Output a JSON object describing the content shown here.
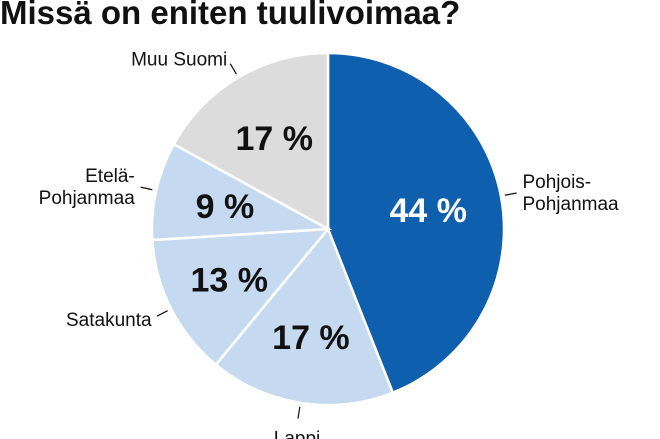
{
  "title": "Missä on eniten tuulivoimaa?",
  "chart_data": {
    "type": "pie",
    "title": "Missä on eniten tuulivoimaa?",
    "slices": [
      {
        "label_lines": [
          "Pohjois-",
          "Pohjanmaa"
        ],
        "value": 44,
        "value_label": "44 %",
        "color": "#0e5fad",
        "value_text_color": "#ffffff"
      },
      {
        "label_lines": [
          "Lappi"
        ],
        "value": 17,
        "value_label": "17 %",
        "color": "#c5daf1",
        "value_text_color": "#111111"
      },
      {
        "label_lines": [
          "Satakunta"
        ],
        "value": 13,
        "value_label": "13 %",
        "color": "#c5daf1",
        "value_text_color": "#111111"
      },
      {
        "label_lines": [
          "Etelä-",
          "Pohjanmaa"
        ],
        "value": 9,
        "value_label": "9 %",
        "color": "#c5daf1",
        "value_text_color": "#111111"
      },
      {
        "label_lines": [
          "Muu Suomi"
        ],
        "value": 17,
        "value_label": "17 %",
        "color": "#dcdcdc",
        "value_text_color": "#111111"
      }
    ],
    "start": "top",
    "direction": "clockwise"
  }
}
